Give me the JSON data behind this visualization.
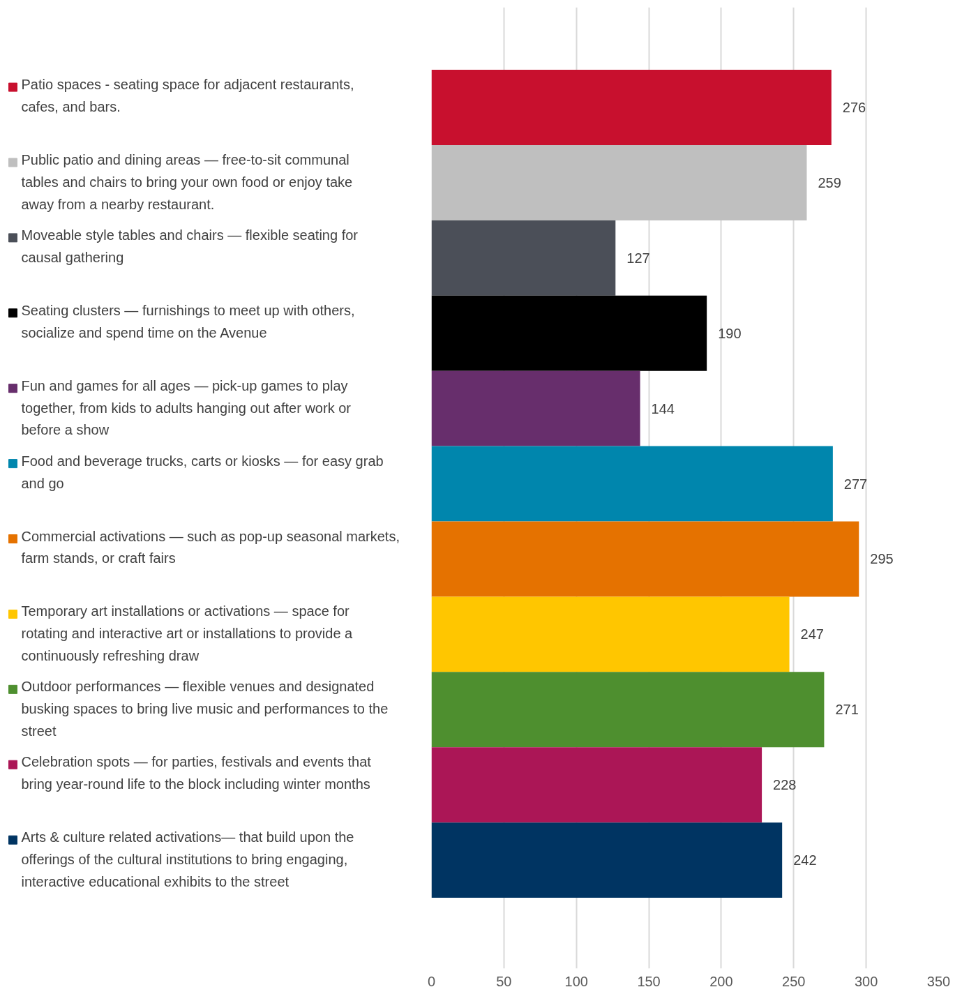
{
  "chart_data": {
    "type": "bar",
    "orientation": "horizontal",
    "categories": [
      null
    ],
    "series": [
      {
        "name": "Patio spaces - seating space for adjacent restaurants, cafes, and bars.",
        "color": "#c8102e",
        "values": [
          276
        ]
      },
      {
        "name": "Public patio and dining areas — free-to-sit communal tables and chairs to bring your own food or enjoy take away from a nearby restaurant.",
        "color": "#bfbfbf",
        "values": [
          259
        ]
      },
      {
        "name": "Moveable style tables and chairs — flexible seating for causal gathering",
        "color": "#4b4f58",
        "values": [
          127
        ]
      },
      {
        "name": "Seating clusters — furnishings to meet up with others, socialize and spend time on the Avenue",
        "color": "#000000",
        "values": [
          190
        ]
      },
      {
        "name": "Fun and games for all ages — pick-up games to play together, from kids to adults hanging out after work or before a show",
        "color": "#672e6c",
        "values": [
          144
        ]
      },
      {
        "name": "Food and beverage trucks, carts or kiosks — for easy grab and go",
        "color": "#0086ad",
        "values": [
          277
        ]
      },
      {
        "name": "Commercial activations — such as pop-up seasonal markets, farm stands, or craft fairs",
        "color": "#e57200",
        "values": [
          295
        ]
      },
      {
        "name": "Temporary art installations or activations — space for rotating and interactive art or installations to provide a continuously refreshing draw",
        "color": "#ffc600",
        "values": [
          247
        ]
      },
      {
        "name": "Outdoor performances — flexible venues and designated busking spaces to bring live music and performances to the street",
        "color": "#4e8f2f",
        "values": [
          271
        ]
      },
      {
        "name": "Celebration spots — for parties, festivals and events that bring year-round life to the block including winter months",
        "color": "#ab1656",
        "values": [
          228
        ]
      },
      {
        "name": "Arts & culture related activations— that build upon the offerings of the cultural institutions to bring engaging, interactive educational exhibits to the street",
        "color": "#003462",
        "values": [
          242
        ]
      }
    ],
    "xlim": [
      0,
      350
    ],
    "xticks": [
      0,
      50,
      100,
      150,
      200,
      250,
      300,
      350
    ],
    "grid": "x",
    "legend": "left",
    "data_labels": true
  }
}
